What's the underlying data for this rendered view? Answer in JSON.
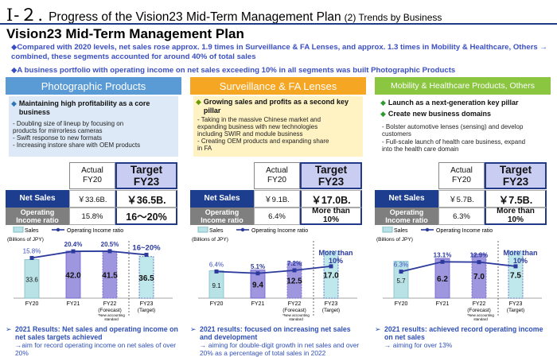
{
  "header": {
    "num": "Ⅰ-２.",
    "title": "Progress of the Vision23 Mid-Term Management Plan",
    "sub": "(2) Trends by Business"
  },
  "main_title": "Vision23 Mid-Term Management Plan",
  "bullets": [
    "◆Compared with 2020 levels, net sales rose approx. 1.9 times in Surveillance & FA Lenses, and approx. 1.3 times in Mobility & Healthcare, Others → combined, these segments accounted for around 40% of total sales",
    "◆A business portfolio with operating income on net sales exceeding 10% in all segments was built Photographic Products"
  ],
  "table_labels": {
    "actual1": "Actual",
    "actual2": "FY20",
    "target1": "Target",
    "target2": "FY23",
    "net_sales": "Net Sales",
    "op1": "Operating",
    "op2": "Income ratio"
  },
  "chart_labels": {
    "sales": "Sales",
    "ratio": "Operating Income ratio",
    "unit": "(Billions of JPY)",
    "x": [
      "FY20",
      "FY21",
      "FY22",
      "FY23"
    ],
    "x2": [
      "",
      "",
      "(Forecast)",
      "(Target)"
    ],
    "note1": "*New accounting",
    "note2": "standard"
  },
  "segments": [
    {
      "band": "Photographic Products",
      "points": [
        {
          "text": "Maintaining high profitability as a core business"
        }
      ],
      "subs": [
        "- Doubling size of lineup by focusing on",
        "  products for mirrorless cameras",
        "- Swift response to new formats",
        "- Increasing instore share with OEM products"
      ],
      "actual_sales": "￥33.6B.",
      "target_sales": "￥36.5B.",
      "actual_ratio": "15.8%",
      "target_ratio": "16～20%",
      "foot_title": "2021 Results: Net sales and operating income on net sales targets achieved",
      "foot_sub": "→aim for record operating income on net sales of over 20%",
      "chart_data": {
        "type": "bar",
        "categories": [
          "FY20",
          "FY21",
          "FY22",
          "FY23"
        ],
        "series": [
          {
            "name": "Sales",
            "values": [
              33.6,
              42.0,
              41.5,
              36.5
            ]
          },
          {
            "name": "Operating Income ratio",
            "values": [
              15.8,
              20.4,
              20.5,
              18.0
            ]
          }
        ],
        "bar_labels": [
          "33.6",
          "42.0",
          "41.5",
          "36.5"
        ],
        "ratio_labels": [
          "15.8%",
          "20.4%",
          "20.5%",
          "16~20%"
        ]
      }
    },
    {
      "band": "Surveillance & FA Lenses",
      "points": [
        {
          "text": "Growing sales and profits as a second key pillar"
        }
      ],
      "subs": [
        "- Taking in the massive Chinese market and",
        "  expanding business with new technologies",
        "  including SWIR and module business",
        "- Creating OEM products and expanding share",
        "  in FA"
      ],
      "actual_sales": "￥9.1B.",
      "target_sales": "￥17.0B.",
      "actual_ratio": "6.4%",
      "target_ratio1": "More than",
      "target_ratio2": "10%",
      "foot_title": "2021 results: focused on increasing net sales and development",
      "foot_sub": "→ aiming for double-digit growth in net sales and over 20% as a percentage of total sales in 2022",
      "chart_data": {
        "type": "bar",
        "categories": [
          "FY20",
          "FY21",
          "FY22",
          "FY23"
        ],
        "series": [
          {
            "name": "Sales",
            "values": [
              9.1,
              9.4,
              12.5,
              17.0
            ]
          },
          {
            "name": "Operating Income ratio",
            "values": [
              6.4,
              5.1,
              7.2,
              10.0
            ]
          }
        ],
        "bar_labels": [
          "9.1",
          "9.4",
          "12.5",
          "17.0"
        ],
        "ratio_labels": [
          "6.4%",
          "5.1%",
          "7.2%",
          "More than 10%"
        ]
      }
    },
    {
      "band": "Mobility & Healthcare Products, Others",
      "points": [
        {
          "text": "Launch as a next-generation key pillar"
        },
        {
          "text": "Create new business domains"
        }
      ],
      "subs": [
        "- Bolster automotive lenses (sensing) and develop",
        "  customers",
        "- Full-scale launch of health care business, expand",
        "  into the health care domain"
      ],
      "actual_sales": "￥5.7B.",
      "target_sales": "￥7.5B.",
      "actual_ratio": "6.3%",
      "target_ratio1": "More than",
      "target_ratio2": "10%",
      "foot_title": "2021 results: achieved record operating income on net sales",
      "foot_sub": "→ aiming for over 13%",
      "chart_data": {
        "type": "bar",
        "categories": [
          "FY20",
          "FY21",
          "FY22",
          "FY23"
        ],
        "series": [
          {
            "name": "Sales",
            "values": [
              5.7,
              6.2,
              7.0,
              7.5
            ]
          },
          {
            "name": "Operating Income ratio",
            "values": [
              6.3,
              13.1,
              12.9,
              10.0
            ]
          }
        ],
        "bar_labels": [
          "5.7",
          "6.2",
          "7.0",
          "7.5"
        ],
        "ratio_labels": [
          "6.3%",
          "13.1%",
          "12.9%",
          "More than 10%"
        ]
      }
    }
  ]
}
